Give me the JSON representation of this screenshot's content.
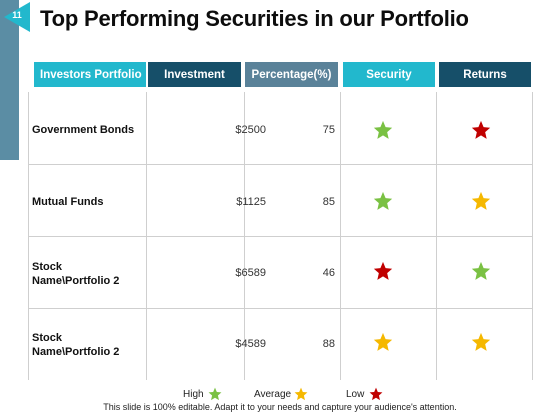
{
  "slide": {
    "number": "11",
    "title": "Top Performing Securities in our Portfolio"
  },
  "table": {
    "headers": {
      "name": "Investors Portfolio",
      "investment": "Investment",
      "percentage": "Percentage(%)",
      "security": "Security",
      "returns": "Returns"
    },
    "rows": [
      {
        "name": "Government Bonds",
        "investment": "$2500",
        "percentage": "75",
        "security": "high",
        "returns": "low"
      },
      {
        "name": "Mutual Funds",
        "investment": "$1125",
        "percentage": "85",
        "security": "high",
        "returns": "average"
      },
      {
        "name_line1": "Stock",
        "name_line2": "Name\\Portfolio 2",
        "investment": "$6589",
        "percentage": "46",
        "security": "low",
        "returns": "high"
      },
      {
        "name_line1": "Stock",
        "name_line2": "Name\\Portfolio 2",
        "investment": "$4589",
        "percentage": "88",
        "security": "average",
        "returns": "average"
      }
    ]
  },
  "legend": {
    "high": "High",
    "average": "Average",
    "low": "Low"
  },
  "colors": {
    "high": "#7ac143",
    "average": "#f5b800",
    "low": "#c00000"
  },
  "footer": "This slide is 100% editable. Adapt it to your needs and capture your audience's attention."
}
